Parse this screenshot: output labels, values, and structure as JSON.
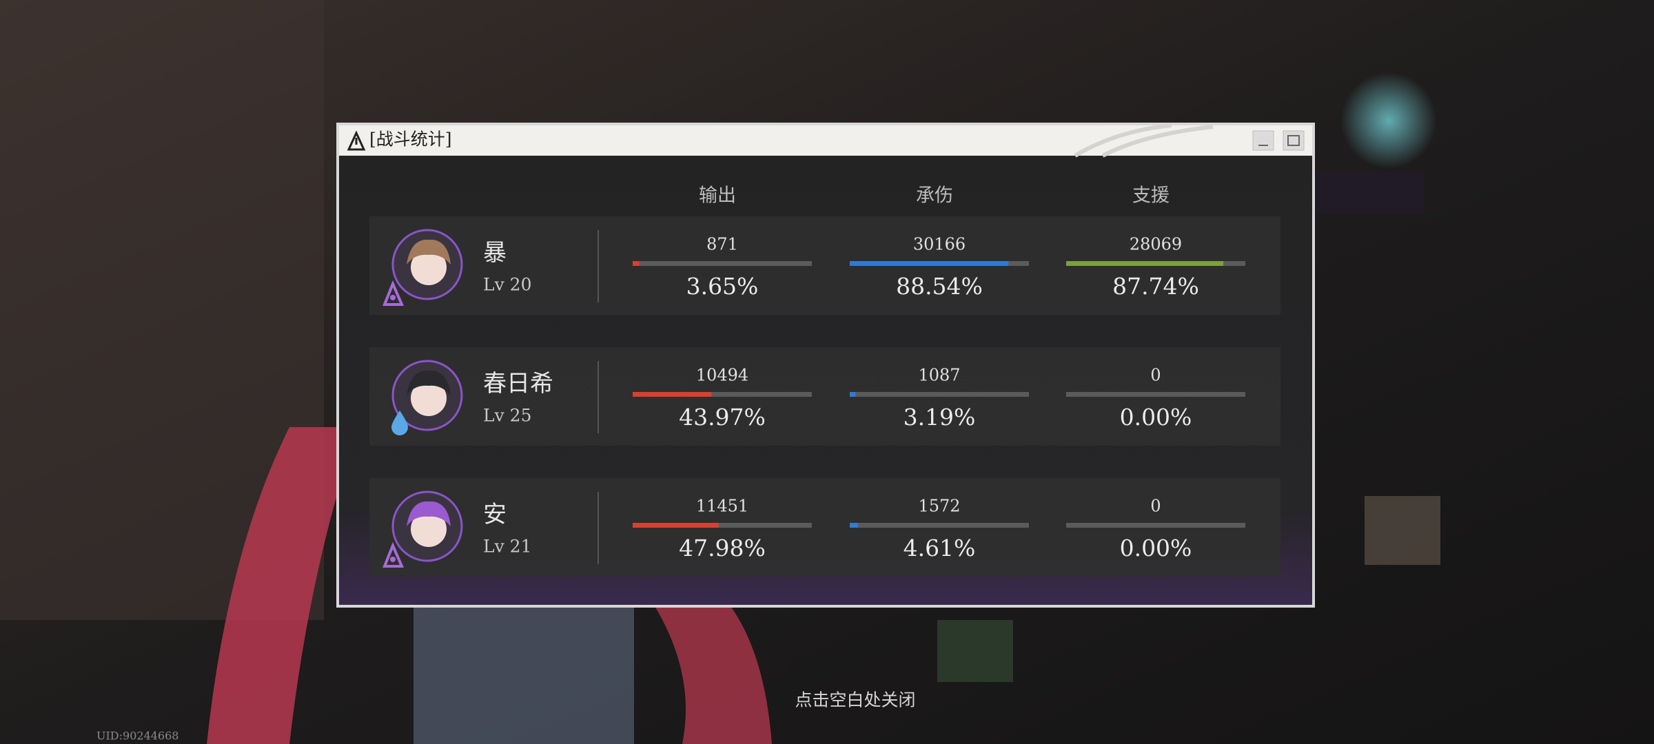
{
  "window": {
    "title": "[战斗统计]"
  },
  "columns": [
    {
      "label": "输出",
      "color": "#d9402f"
    },
    {
      "label": "承伤",
      "color": "#2f7bd6"
    },
    {
      "label": "支援",
      "color": "#7aa13d"
    }
  ],
  "rows": [
    {
      "name": "暴",
      "level": "Lv 20",
      "stats": [
        {
          "value": 871,
          "share": 3.65,
          "share_label": "3.65%"
        },
        {
          "value": 30166,
          "share": 88.54,
          "share_label": "88.54%"
        },
        {
          "value": 28069,
          "share": 87.74,
          "share_label": "87.74%"
        }
      ]
    },
    {
      "name": "春日希",
      "level": "Lv 25",
      "stats": [
        {
          "value": 10494,
          "share": 43.97,
          "share_label": "43.97%"
        },
        {
          "value": 1087,
          "share": 3.19,
          "share_label": "3.19%"
        },
        {
          "value": 0,
          "share": 0,
          "share_label": "0.00%"
        }
      ]
    },
    {
      "name": "安",
      "level": "Lv 21",
      "stats": [
        {
          "value": 11451,
          "share": 47.98,
          "share_label": "47.98%"
        },
        {
          "value": 1572,
          "share": 4.61,
          "share_label": "4.61%"
        },
        {
          "value": 0,
          "share": 0,
          "share_label": "0.00%"
        }
      ]
    }
  ],
  "footer": {
    "hint": "点击空白处关闭",
    "uid": "UID:90244668"
  }
}
